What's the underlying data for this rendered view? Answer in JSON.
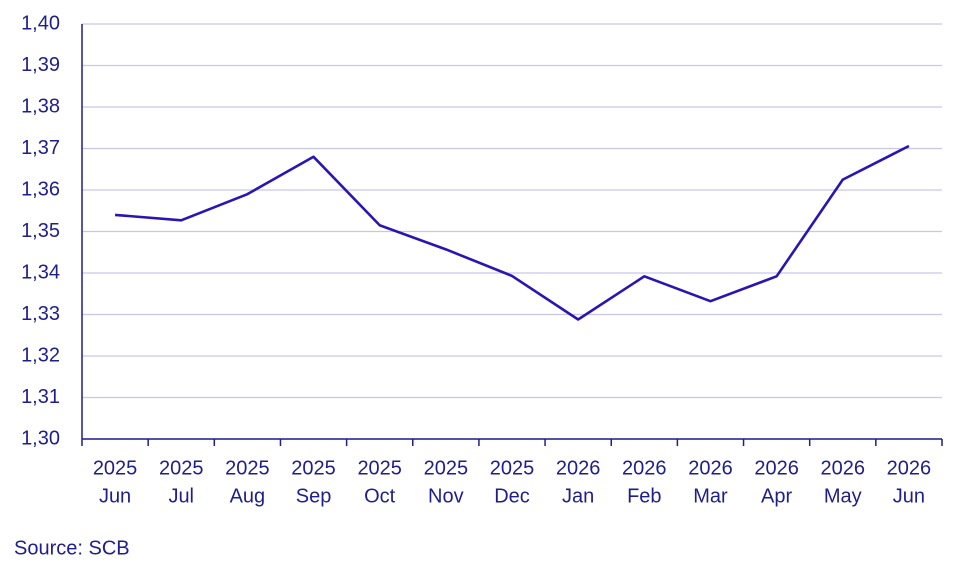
{
  "chart_data": {
    "type": "line",
    "categories": [
      [
        "2025",
        "Jun"
      ],
      [
        "2025",
        "Jul"
      ],
      [
        "2025",
        "Aug"
      ],
      [
        "2025",
        "Sep"
      ],
      [
        "2025",
        "Oct"
      ],
      [
        "2025",
        "Nov"
      ],
      [
        "2025",
        "Dec"
      ],
      [
        "2026",
        "Jan"
      ],
      [
        "2026",
        "Feb"
      ],
      [
        "2026",
        "Mar"
      ],
      [
        "2026",
        "Apr"
      ],
      [
        "2026",
        "May"
      ],
      [
        "2026",
        "Jun"
      ]
    ],
    "values": [
      1.354,
      1.3527,
      1.359,
      1.368,
      1.3515,
      1.3457,
      1.3393,
      1.3288,
      1.3392,
      1.3332,
      1.3392,
      1.3625,
      1.3706
    ],
    "color": "#2a14b4",
    "ylim": [
      1.3,
      1.4
    ],
    "yticks": [
      {
        "value": 1.3,
        "label": "1,30"
      },
      {
        "value": 1.31,
        "label": "1,31"
      },
      {
        "value": 1.32,
        "label": "1,32"
      },
      {
        "value": 1.33,
        "label": "1,33"
      },
      {
        "value": 1.34,
        "label": "1,34"
      },
      {
        "value": 1.35,
        "label": "1,35"
      },
      {
        "value": 1.36,
        "label": "1,36"
      },
      {
        "value": 1.37,
        "label": "1,37"
      },
      {
        "value": 1.38,
        "label": "1,38"
      },
      {
        "value": 1.39,
        "label": "1,39"
      },
      {
        "value": 1.4,
        "label": "1,40"
      }
    ],
    "grid": true,
    "source": "Source: SCB"
  }
}
